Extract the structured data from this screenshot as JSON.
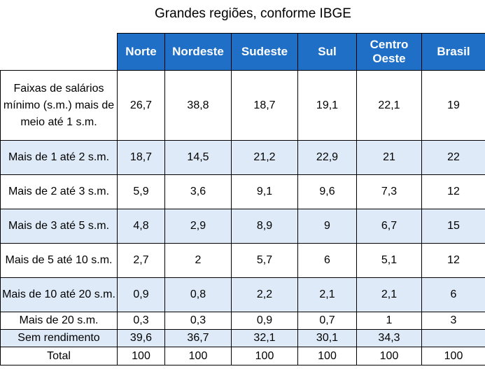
{
  "title": "Grandes regiões, conforme IBGE",
  "table": {
    "columns": [
      "Norte",
      "Nordeste",
      "Sudeste",
      "Sul",
      "Centro Oeste",
      "Brasil"
    ],
    "rows": [
      {
        "label": "Faixas de salários mínimo (s.m.) mais de meio até 1 s.m.",
        "values": [
          "26,7",
          "38,8",
          "18,7",
          "19,1",
          "22,1",
          "19"
        ],
        "shaded": false,
        "size": "h-4"
      },
      {
        "label": "Mais de 1 até 2 s.m.",
        "values": [
          "18,7",
          "14,5",
          "21,2",
          "22,9",
          "21",
          "22"
        ],
        "shaded": true,
        "size": "h-2"
      },
      {
        "label": "Mais de 2 até 3 s.m.",
        "values": [
          "5,9",
          "3,6",
          "9,1",
          "9,6",
          "7,3",
          "12"
        ],
        "shaded": false,
        "size": "h-2"
      },
      {
        "label": "Mais de 3 até 5 s.m.",
        "values": [
          "4,8",
          "2,9",
          "8,9",
          "9",
          "6,7",
          "15"
        ],
        "shaded": true,
        "size": "h-2"
      },
      {
        "label": "Mais de 5 até 10 s.m.",
        "values": [
          "2,7",
          "2",
          "5,7",
          "6",
          "5,1",
          "12"
        ],
        "shaded": false,
        "size": "h-2"
      },
      {
        "label": "Mais de 10 até 20 s.m.",
        "values": [
          "0,9",
          "0,8",
          "2,2",
          "2,1",
          "2,1",
          "6"
        ],
        "shaded": true,
        "size": "h-2"
      },
      {
        "label": "Mais de 20 s.m.",
        "values": [
          "0,3",
          "0,3",
          "0,9",
          "0,7",
          "1",
          "3"
        ],
        "shaded": false,
        "size": "h-1"
      },
      {
        "label": "Sem rendimento",
        "values": [
          "39,6",
          "36,7",
          "32,1",
          "30,1",
          "34,3",
          ""
        ],
        "shaded": true,
        "size": "h-1"
      },
      {
        "label": "Total",
        "values": [
          "100",
          "100",
          "100",
          "100",
          "100",
          "100"
        ],
        "shaded": false,
        "size": "h-last"
      }
    ]
  },
  "colors": {
    "header_bg": "#1f6fc6",
    "header_text": "#ffffff",
    "shade_bg": "#deeaf7"
  }
}
